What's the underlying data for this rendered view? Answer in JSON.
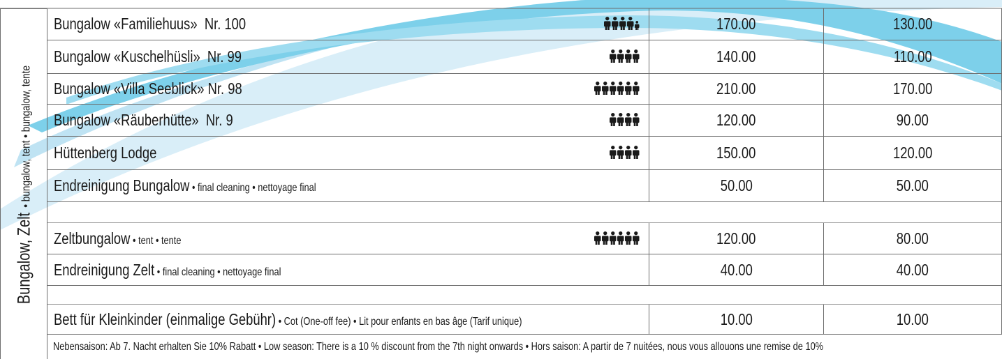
{
  "side_label": {
    "main": "Bungalow, Zelt",
    "sub": "• bungalow, tent • bungalow, tente"
  },
  "groups": [
    {
      "rows": [
        {
          "name": "Bungalow «Familiehuus»  Nr. 100",
          "adults": 4,
          "kids": 1,
          "prices": [
            "170.00",
            "130.00"
          ]
        },
        {
          "name": "Bungalow «Kuschelhüsli»  Nr. 99",
          "adults": 4,
          "prices": [
            "140.00",
            "110.00"
          ]
        },
        {
          "name": "Bungalow «Villa Seeblick» Nr. 98",
          "adults": 6,
          "prices": [
            "210.00",
            "170.00"
          ]
        },
        {
          "name": "Bungalow «Räuberhütte»  Nr. 9",
          "adults": 4,
          "prices": [
            "120.00",
            "90.00"
          ]
        },
        {
          "name": "Hüttenberg Lodge",
          "adults": 4,
          "prices": [
            "150.00",
            "120.00"
          ]
        },
        {
          "name": "Endreinigung Bungalow",
          "note": "• final cleaning • nettoyage final",
          "prices": [
            "50.00",
            "50.00"
          ]
        }
      ]
    },
    {
      "rows": [
        {
          "name": "Zeltbungalow",
          "note": "• tent • tente",
          "adults": 6,
          "prices": [
            "120.00",
            "80.00"
          ]
        },
        {
          "name": "Endreinigung Zelt",
          "note": "• final cleaning • nettoyage final",
          "prices": [
            "40.00",
            "40.00"
          ]
        }
      ]
    },
    {
      "rows": [
        {
          "name": "Bett für Kleinkinder (einmalige Gebühr)",
          "note": "• Cot (One-off fee) • Lit pour enfants en bas âge (Tarif unique)",
          "prices": [
            "10.00",
            "10.00"
          ]
        }
      ]
    }
  ],
  "footnote": "Nebensaison: Ab 7. Nacht erhalten Sie 10% Rabatt  •  Low season: There is a 10 % discount from the 7th night onwards  •  Hors saison: A partir de 7 nuitées, nous vous allouons une remise de 10%"
}
